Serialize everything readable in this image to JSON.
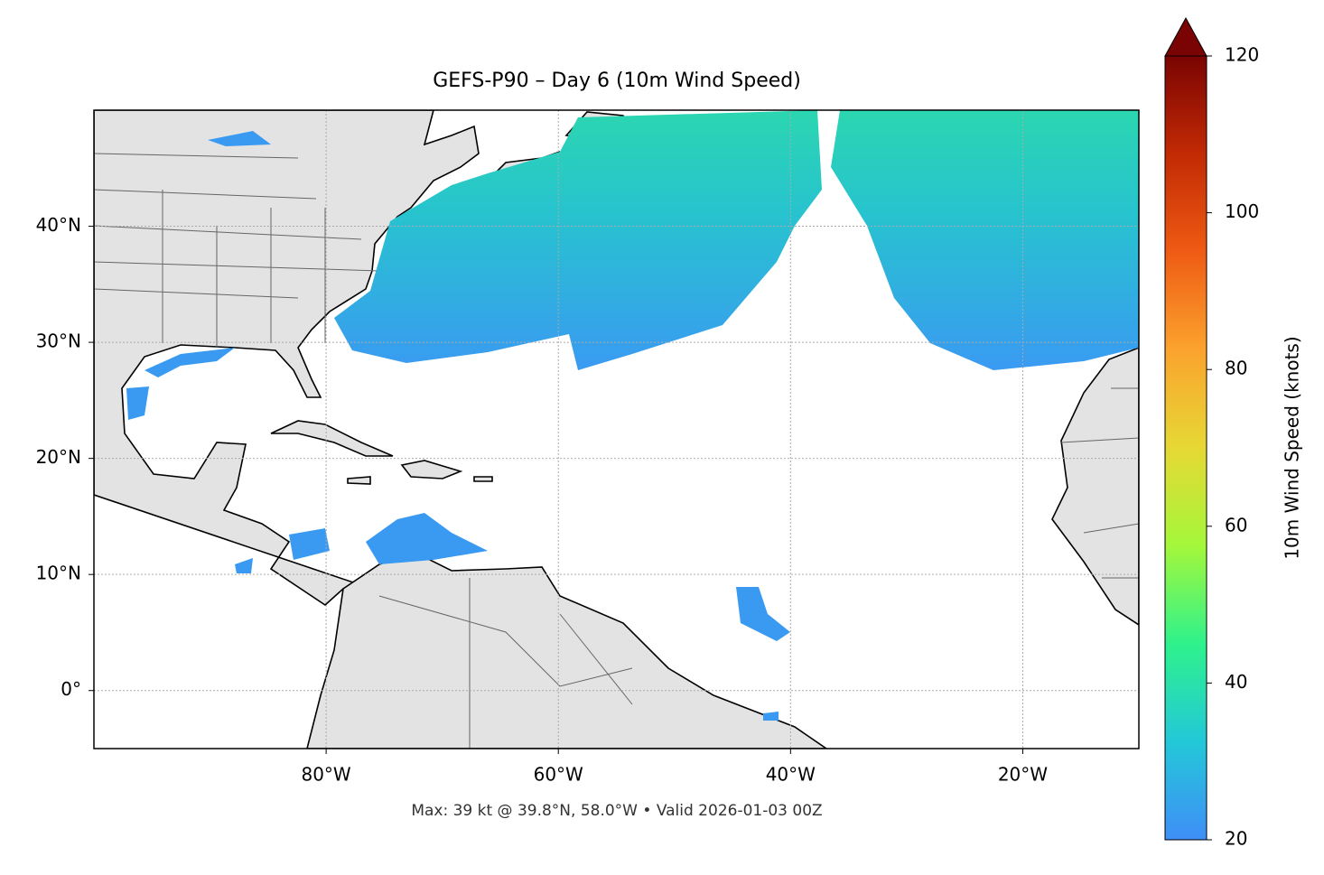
{
  "chart_data": {
    "type": "map",
    "title": "GEFS-P90 – Day 6 (10m Wind Speed)",
    "note": "Max: 39 kt @ 39.8°N, 58.0°W • Valid 2026-01-03 00Z",
    "xlim": [
      -100,
      -10
    ],
    "ylim": [
      -5,
      50
    ],
    "xticks": [
      {
        "value": -80,
        "label": "80°W"
      },
      {
        "value": -60,
        "label": "60°W"
      },
      {
        "value": -40,
        "label": "40°W"
      },
      {
        "value": -20,
        "label": "20°W"
      }
    ],
    "yticks": [
      {
        "value": 0,
        "label": "0°"
      },
      {
        "value": 10,
        "label": "10°N"
      },
      {
        "value": 20,
        "label": "20°N"
      },
      {
        "value": 30,
        "label": "30°N"
      },
      {
        "value": 40,
        "label": "40°N"
      }
    ],
    "grid": true,
    "colorbar": {
      "label": "10m Wind Speed (knots)",
      "lim": [
        20,
        120
      ],
      "ticks": [
        20,
        40,
        60,
        80,
        100,
        120
      ],
      "colormap": [
        "#3f8ef7",
        "#23c8d8",
        "#2ef28c",
        "#a4f73a",
        "#e6d834",
        "#fba32e",
        "#ef5b14",
        "#c22a04",
        "#7a0403"
      ],
      "extend_color": "#7a0403"
    }
  }
}
